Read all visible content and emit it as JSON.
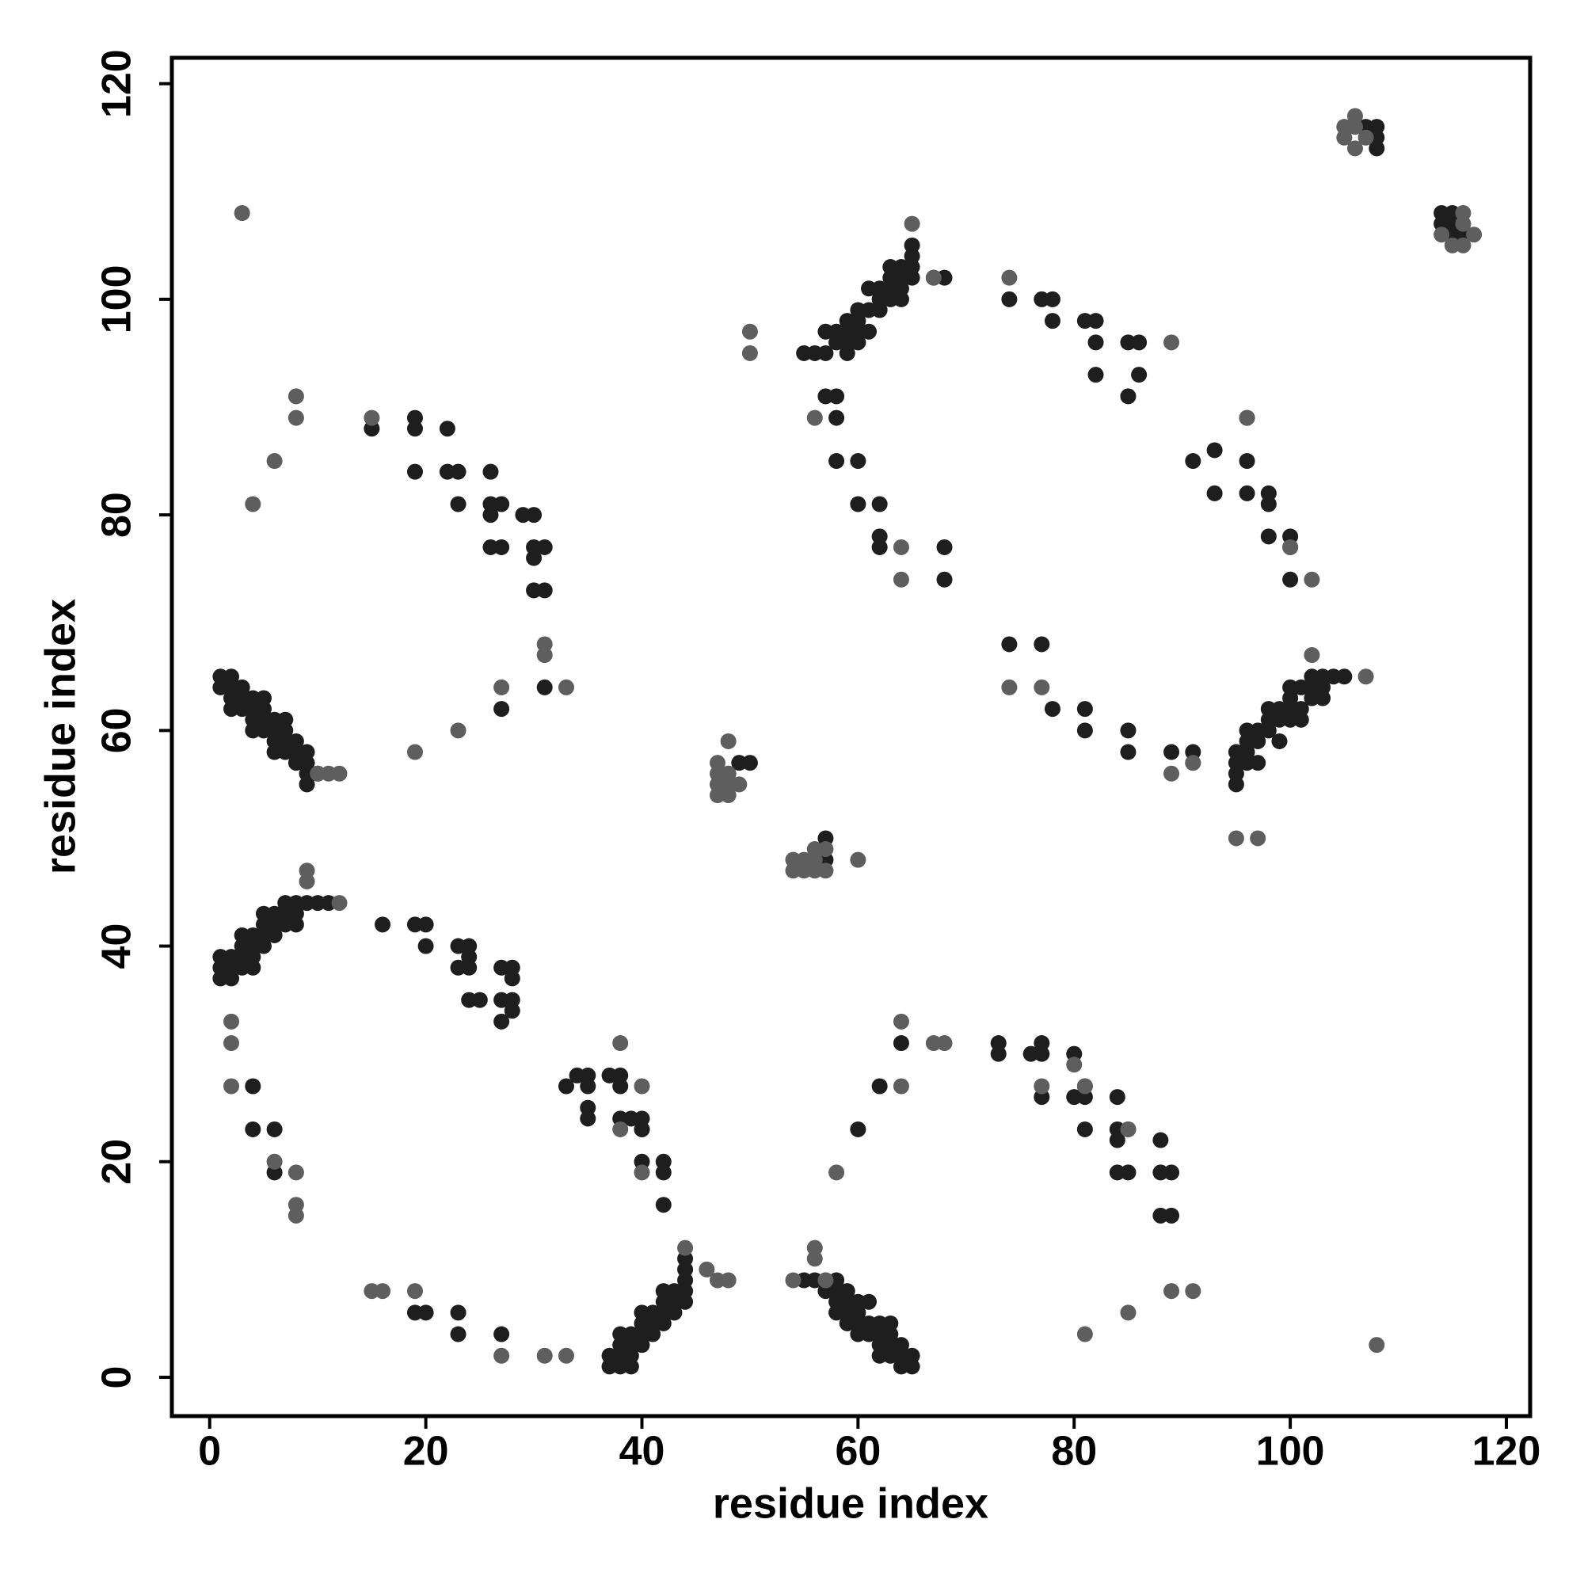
{
  "chart_data": {
    "type": "scatter",
    "x_label": "residue index",
    "y_label": "residue index",
    "xlim": [
      -3.5,
      122.2
    ],
    "ylim": [
      -3.6,
      122.4
    ],
    "xticks": [
      0,
      20,
      40,
      60,
      80,
      100,
      120
    ],
    "yticks": [
      0,
      20,
      40,
      60,
      80,
      100,
      120
    ],
    "grid": false,
    "series": [
      {
        "color": "#1e1e1e",
        "x": [
          1,
          2,
          1,
          2,
          3,
          2,
          3,
          4,
          5,
          2,
          3,
          4,
          5,
          4,
          5,
          6,
          7,
          4,
          5,
          6,
          7,
          6,
          7,
          8,
          6,
          7,
          8,
          9,
          8,
          9,
          9,
          10,
          9,
          1,
          2,
          1,
          2,
          3,
          4,
          1,
          2,
          3,
          4,
          3,
          4,
          5,
          3,
          4,
          5,
          6,
          5,
          6,
          7,
          8,
          5,
          6,
          7,
          8,
          7,
          8,
          9,
          10,
          11,
          15,
          19,
          19,
          22,
          19,
          22,
          23,
          23,
          26,
          26,
          26,
          27,
          29,
          30,
          26,
          27,
          30,
          31,
          30,
          30,
          31,
          27,
          31,
          16,
          19,
          20,
          20,
          23,
          24,
          24,
          23,
          24,
          24,
          25,
          27,
          28,
          28,
          28,
          27,
          28,
          27,
          4,
          4,
          6,
          6,
          33,
          34,
          35,
          35,
          35,
          35,
          37,
          38,
          38,
          38,
          39,
          40,
          40,
          40,
          40,
          42,
          42,
          42,
          37,
          38,
          39,
          37,
          38,
          39,
          38,
          39,
          40,
          38,
          39,
          40,
          41,
          40,
          41,
          42,
          40,
          41,
          42,
          43,
          42,
          43,
          44,
          42,
          43,
          44,
          44,
          44,
          44,
          19,
          20,
          23,
          23,
          27,
          49,
          50,
          57,
          57,
          56,
          55,
          56,
          57,
          57,
          58,
          58,
          58,
          59,
          59,
          58,
          59,
          60,
          60,
          61,
          59,
          60,
          61,
          62,
          60,
          61,
          62,
          63,
          63,
          62,
          63,
          64,
          62,
          63,
          64,
          65,
          64,
          65,
          60,
          62,
          64,
          73,
          73,
          76,
          77,
          77,
          80,
          77,
          80,
          81,
          81,
          81,
          84,
          84,
          85,
          84,
          84,
          85,
          88,
          88,
          89,
          88,
          89,
          55,
          56,
          57,
          57,
          58,
          58,
          57,
          58,
          59,
          59,
          58,
          59,
          59,
          60,
          60,
          61,
          60,
          60,
          61,
          62,
          62,
          61,
          62,
          63,
          63,
          63,
          64,
          64,
          65,
          63,
          64,
          64,
          65,
          65,
          65,
          67,
          68,
          58,
          60,
          60,
          62,
          62,
          62,
          68,
          68,
          74,
          77,
          78,
          78,
          81,
          82,
          82,
          82,
          85,
          86,
          86,
          85,
          91,
          93,
          93,
          96,
          96,
          96,
          98,
          98,
          98,
          100,
          100,
          100,
          95,
          96,
          95,
          96,
          97,
          95,
          95,
          96,
          97,
          97,
          98,
          96,
          98,
          98,
          99,
          99,
          100,
          99,
          100,
          100,
          100,
          101,
          101,
          101,
          102,
          102,
          102,
          103,
          103,
          104,
          105,
          103,
          74,
          77,
          78,
          81,
          81,
          85,
          85,
          89,
          91,
          91,
          107,
          108,
          108,
          108,
          114,
          115,
          114,
          115,
          115,
          116
        ],
        "values": [
          65,
          65,
          64,
          64,
          64,
          63,
          63,
          63,
          63,
          62,
          62,
          62,
          62,
          61,
          61,
          61,
          61,
          60,
          60,
          60,
          60,
          59,
          59,
          59,
          58,
          58,
          58,
          58,
          57,
          57,
          56,
          56,
          55,
          39,
          39,
          38,
          38,
          38,
          38,
          37,
          37,
          39,
          39,
          40,
          40,
          40,
          41,
          41,
          41,
          41,
          42,
          42,
          42,
          42,
          43,
          43,
          43,
          43,
          44,
          44,
          44,
          44,
          44,
          88,
          89,
          88,
          88,
          84,
          84,
          84,
          81,
          84,
          81,
          80,
          81,
          80,
          80,
          77,
          77,
          77,
          77,
          76,
          73,
          73,
          62,
          64,
          42,
          42,
          42,
          40,
          40,
          40,
          39,
          38,
          38,
          35,
          35,
          38,
          38,
          37,
          35,
          35,
          34,
          33,
          27,
          23,
          23,
          19,
          27,
          28,
          28,
          27,
          25,
          24,
          28,
          28,
          27,
          24,
          24,
          24,
          23,
          20,
          23,
          20,
          19,
          16,
          2,
          2,
          2,
          1,
          1,
          1,
          3,
          3,
          3,
          4,
          4,
          4,
          4,
          5,
          5,
          5,
          6,
          6,
          6,
          6,
          7,
          7,
          7,
          8,
          8,
          8,
          9,
          10,
          11,
          6,
          6,
          6,
          4,
          4,
          57,
          57,
          50,
          48,
          48,
          9,
          9,
          9,
          8,
          8,
          9,
          7,
          7,
          8,
          6,
          6,
          6,
          7,
          7,
          5,
          5,
          5,
          5,
          4,
          4,
          4,
          4,
          5,
          3,
          3,
          3,
          2,
          2,
          2,
          2,
          1,
          1,
          23,
          27,
          31,
          31,
          30,
          30,
          30,
          31,
          30,
          26,
          26,
          26,
          27,
          23,
          26,
          23,
          23,
          22,
          19,
          19,
          22,
          19,
          19,
          15,
          15,
          95,
          95,
          95,
          91,
          91,
          89,
          97,
          97,
          97,
          96,
          96,
          95,
          98,
          98,
          99,
          99,
          97,
          96,
          97,
          99,
          100,
          101,
          101,
          101,
          100,
          102,
          102,
          103,
          103,
          103,
          101,
          100,
          104,
          105,
          102,
          102,
          102,
          85,
          85,
          81,
          81,
          78,
          77,
          77,
          74,
          100,
          100,
          100,
          98,
          98,
          98,
          96,
          93,
          96,
          96,
          93,
          91,
          85,
          86,
          82,
          85,
          82,
          89,
          82,
          81,
          78,
          78,
          77,
          74,
          58,
          58,
          57,
          57,
          57,
          56,
          55,
          59,
          59,
          60,
          60,
          60,
          61,
          62,
          62,
          61,
          62,
          59,
          61,
          63,
          64,
          64,
          62,
          61,
          63,
          64,
          65,
          65,
          64,
          65,
          65,
          63,
          68,
          68,
          62,
          62,
          60,
          60,
          58,
          58,
          58,
          57,
          116,
          116,
          115,
          114,
          108,
          108,
          107,
          107,
          106,
          106
        ]
      },
      {
        "color": "#5e5e5e",
        "x": [
          12,
          11,
          10,
          9,
          9,
          12,
          3,
          4,
          6,
          8,
          8,
          19,
          23,
          27,
          31,
          31,
          33,
          15,
          2,
          2,
          2,
          6,
          8,
          8,
          8,
          38,
          40,
          40,
          38,
          46,
          47,
          48,
          44,
          15,
          16,
          19,
          27,
          31,
          33,
          47,
          48,
          48,
          47,
          48,
          47,
          48,
          49,
          47,
          48,
          54,
          55,
          56,
          56,
          57,
          54,
          55,
          56,
          57,
          60,
          56,
          56,
          54,
          57,
          58,
          64,
          64,
          67,
          68,
          77,
          80,
          81,
          85,
          89,
          91,
          81,
          85,
          108,
          50,
          50,
          56,
          65,
          67,
          64,
          64,
          74,
          89,
          96,
          100,
          102,
          95,
          97,
          102,
          107,
          74,
          77,
          89,
          91,
          105,
          106,
          106,
          105,
          107,
          106,
          116,
          117,
          115,
          116,
          114,
          116
        ],
        "values": [
          56,
          56,
          56,
          47,
          46,
          44,
          108,
          81,
          85,
          91,
          89,
          58,
          60,
          64,
          68,
          67,
          64,
          89,
          33,
          31,
          27,
          20,
          19,
          16,
          15,
          31,
          27,
          19,
          23,
          10,
          9,
          9,
          12,
          8,
          8,
          8,
          2,
          2,
          2,
          56,
          59,
          55,
          55,
          56,
          54,
          54,
          55,
          57,
          56,
          48,
          48,
          48,
          49,
          49,
          47,
          47,
          47,
          47,
          48,
          12,
          11,
          9,
          9,
          19,
          27,
          33,
          31,
          31,
          27,
          29,
          27,
          23,
          8,
          8,
          4,
          6,
          3,
          97,
          95,
          89,
          107,
          102,
          77,
          74,
          102,
          96,
          89,
          77,
          74,
          50,
          50,
          67,
          65,
          64,
          64,
          56,
          57,
          116,
          116,
          117,
          115,
          115,
          114,
          108,
          106,
          105,
          105,
          106,
          107
        ]
      }
    ]
  }
}
